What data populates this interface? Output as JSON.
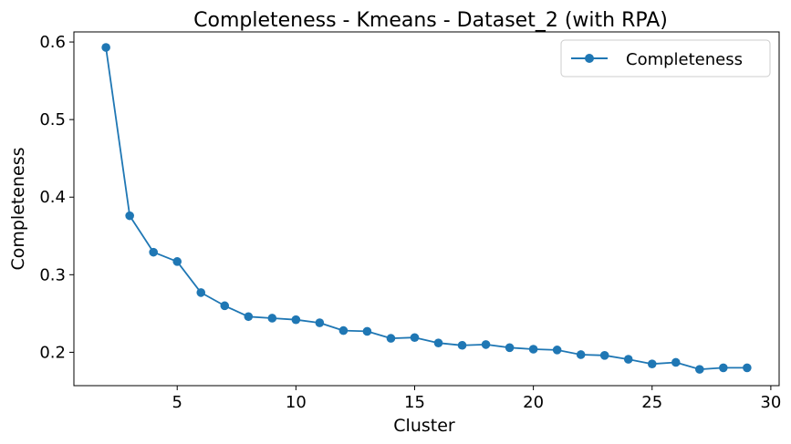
{
  "chart_data": {
    "type": "line",
    "title": "Completeness - Kmeans - Dataset_2 (with RPA)",
    "xlabel": "Cluster",
    "ylabel": "Completeness",
    "xlim": [
      0.65,
      30.35
    ],
    "ylim": [
      0.157,
      0.613
    ],
    "xticks": [
      5,
      10,
      15,
      20,
      25,
      30
    ],
    "yticks": [
      0.2,
      0.3,
      0.4,
      0.5,
      0.6
    ],
    "xtick_labels": [
      "5",
      "10",
      "15",
      "20",
      "25",
      "30"
    ],
    "ytick_labels": [
      "0.2",
      "0.3",
      "0.4",
      "0.5",
      "0.6"
    ],
    "grid": false,
    "legend": {
      "position": "top-right",
      "entries": [
        "Completeness"
      ]
    },
    "series": [
      {
        "name": "Completeness",
        "color": "#1f77b4",
        "marker": "circle",
        "x": [
          2,
          3,
          4,
          5,
          6,
          7,
          8,
          9,
          10,
          11,
          12,
          13,
          14,
          15,
          16,
          17,
          18,
          19,
          20,
          21,
          22,
          23,
          24,
          25,
          26,
          27,
          28,
          29
        ],
        "y": [
          0.593,
          0.376,
          0.329,
          0.317,
          0.277,
          0.26,
          0.246,
          0.244,
          0.242,
          0.238,
          0.228,
          0.227,
          0.218,
          0.219,
          0.212,
          0.209,
          0.21,
          0.206,
          0.204,
          0.203,
          0.197,
          0.196,
          0.191,
          0.185,
          0.187,
          0.178,
          0.18,
          0.18
        ]
      }
    ]
  }
}
